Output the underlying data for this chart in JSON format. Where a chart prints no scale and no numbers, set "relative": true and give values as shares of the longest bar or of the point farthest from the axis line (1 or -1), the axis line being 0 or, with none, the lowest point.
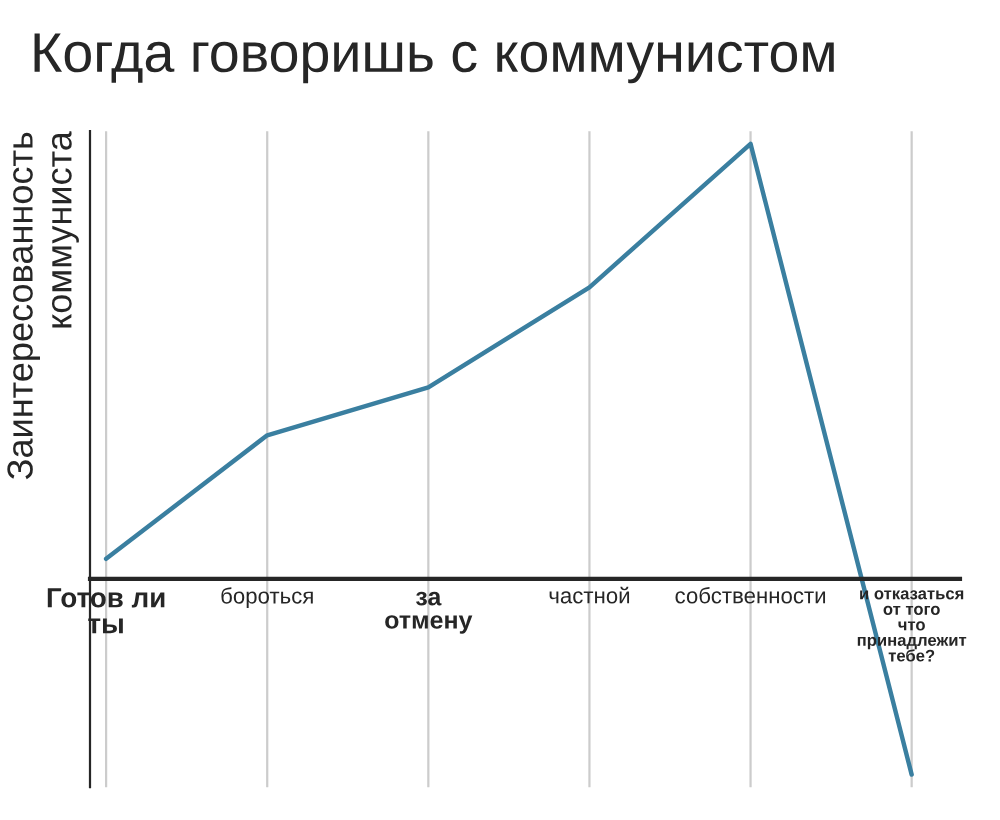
{
  "chart_data": {
    "type": "line",
    "title": "Когда говоришь с коммунистом",
    "ylabel": "Заинтересованность\nкоммуниста",
    "relative": true,
    "categories": [
      "Готов ли\nты",
      "бороться",
      "за\nотмену",
      "частной",
      "собственности",
      "и отказаться\nот того\nчто\nпринадлежит\nтебе?"
    ],
    "series": [
      {
        "color": "#3a7fa0",
        "values": [
          0.046,
          0.33,
          0.44,
          0.67,
          1,
          -0.45
        ]
      }
    ],
    "grid": "x",
    "marker": "none",
    "line_style": "solid"
  }
}
